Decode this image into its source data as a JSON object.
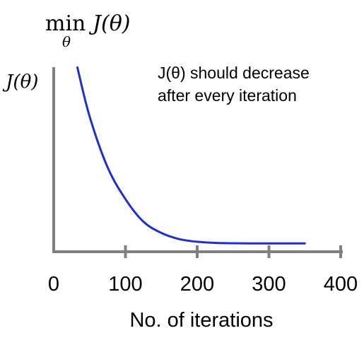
{
  "chart_data": {
    "type": "line",
    "title_op": "min",
    "title_sub": "θ",
    "title_func": "J(θ)",
    "ylabel": "J(θ)",
    "xlabel": "No. of iterations",
    "annotation_lines": [
      "J(θ) should decrease",
      "after every iteration"
    ],
    "xlim": [
      0,
      400
    ],
    "ylim": [
      0,
      1
    ],
    "xticks": [
      0,
      100,
      200,
      300,
      400
    ],
    "xtick_labels": [
      "0",
      "100",
      "200",
      "300",
      "400"
    ],
    "yticks": [],
    "grid": false,
    "series": [
      {
        "color": "#1f2fcc",
        "x": [
          33,
          50,
          75,
          100,
          125,
          150,
          175,
          200,
          225,
          250,
          275,
          300,
          325,
          350
        ],
        "y": [
          0.98,
          0.72,
          0.45,
          0.28,
          0.16,
          0.1,
          0.067,
          0.053,
          0.047,
          0.045,
          0.044,
          0.044,
          0.044,
          0.044
        ]
      }
    ],
    "axis_color": "#808080"
  }
}
